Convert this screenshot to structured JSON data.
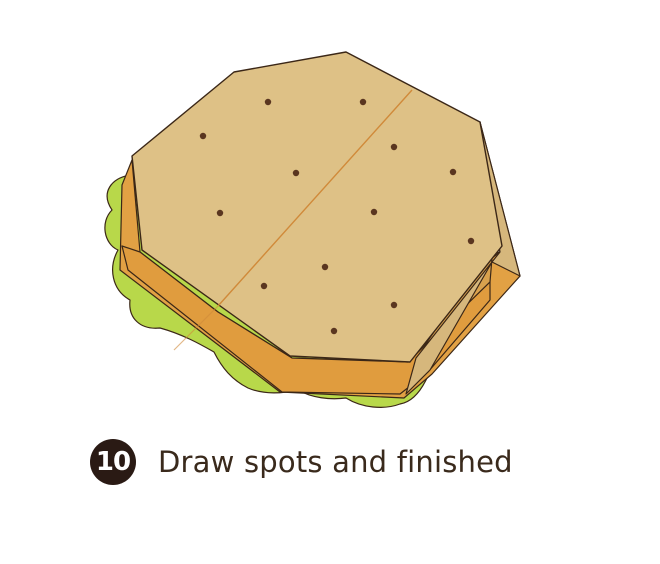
{
  "step": {
    "number": "10",
    "caption": "Draw spots and finished"
  },
  "colors": {
    "lettuce": "#b8d84a",
    "patty_front": "#e2a144",
    "patty_side": "#d99338",
    "paper_top": "#dec186",
    "paper_side": "#d6b77c",
    "outline": "#3b2717",
    "spot": "#5a3620",
    "fold_line": "#d08a3a",
    "badge": "#2a1a14",
    "caption_text": "#3a2a1c"
  },
  "icons": {
    "step_badge": "numbered-circle-badge"
  }
}
